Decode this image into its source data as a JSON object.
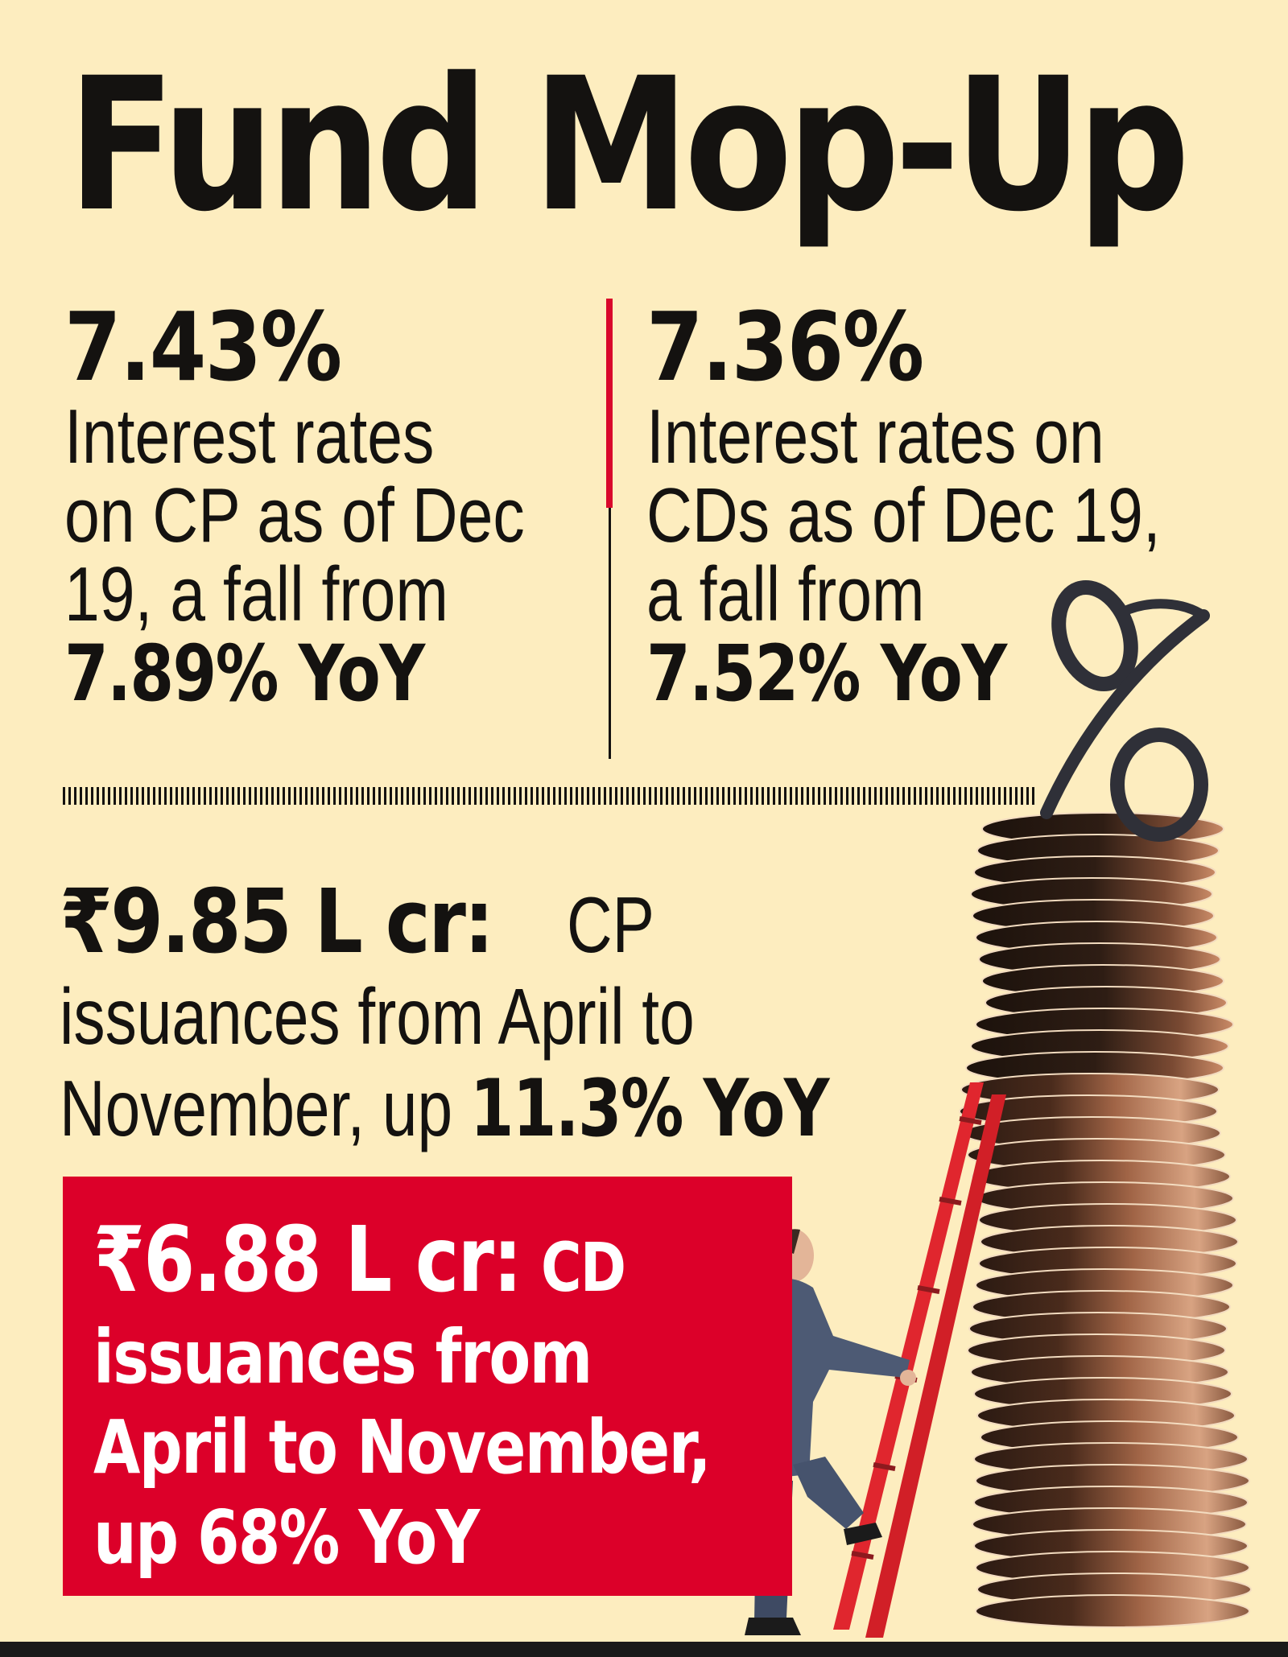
{
  "title": "Fund Mop-Up",
  "stats": {
    "cp_rate": {
      "value": "7.43%",
      "description": "Interest rates\non CP as of Dec\n19, a fall from",
      "previous": "7.89% YoY"
    },
    "cd_rate": {
      "value": "7.36%",
      "description": "Interest rates on\nCDs as of Dec 19,\na fall from",
      "previous": "7.52% YoY"
    }
  },
  "cp_issuance": {
    "amount": "₹9.85 L cr:",
    "label": "CP",
    "description": "issuances from April to\nNovember, up ",
    "change": "11.3% YoY"
  },
  "cd_issuance": {
    "amount": "₹6.88 L cr:",
    "label": "CD",
    "description": "issuances from\nApril to November,\nup 68% YoY"
  },
  "illustration": {
    "symbol": "%",
    "description": "Businessman climbing red ladder toward tall stack of coins topped by percent sign"
  },
  "colors": {
    "background": "#fdedbf",
    "accent_red": "#dc0029",
    "divider_red": "#d9072b",
    "text": "#141210",
    "ladder": "#e0262e",
    "coin_dark": "#3a2418",
    "coin_copper": "#b5724e",
    "suit": "#4d5a74"
  }
}
